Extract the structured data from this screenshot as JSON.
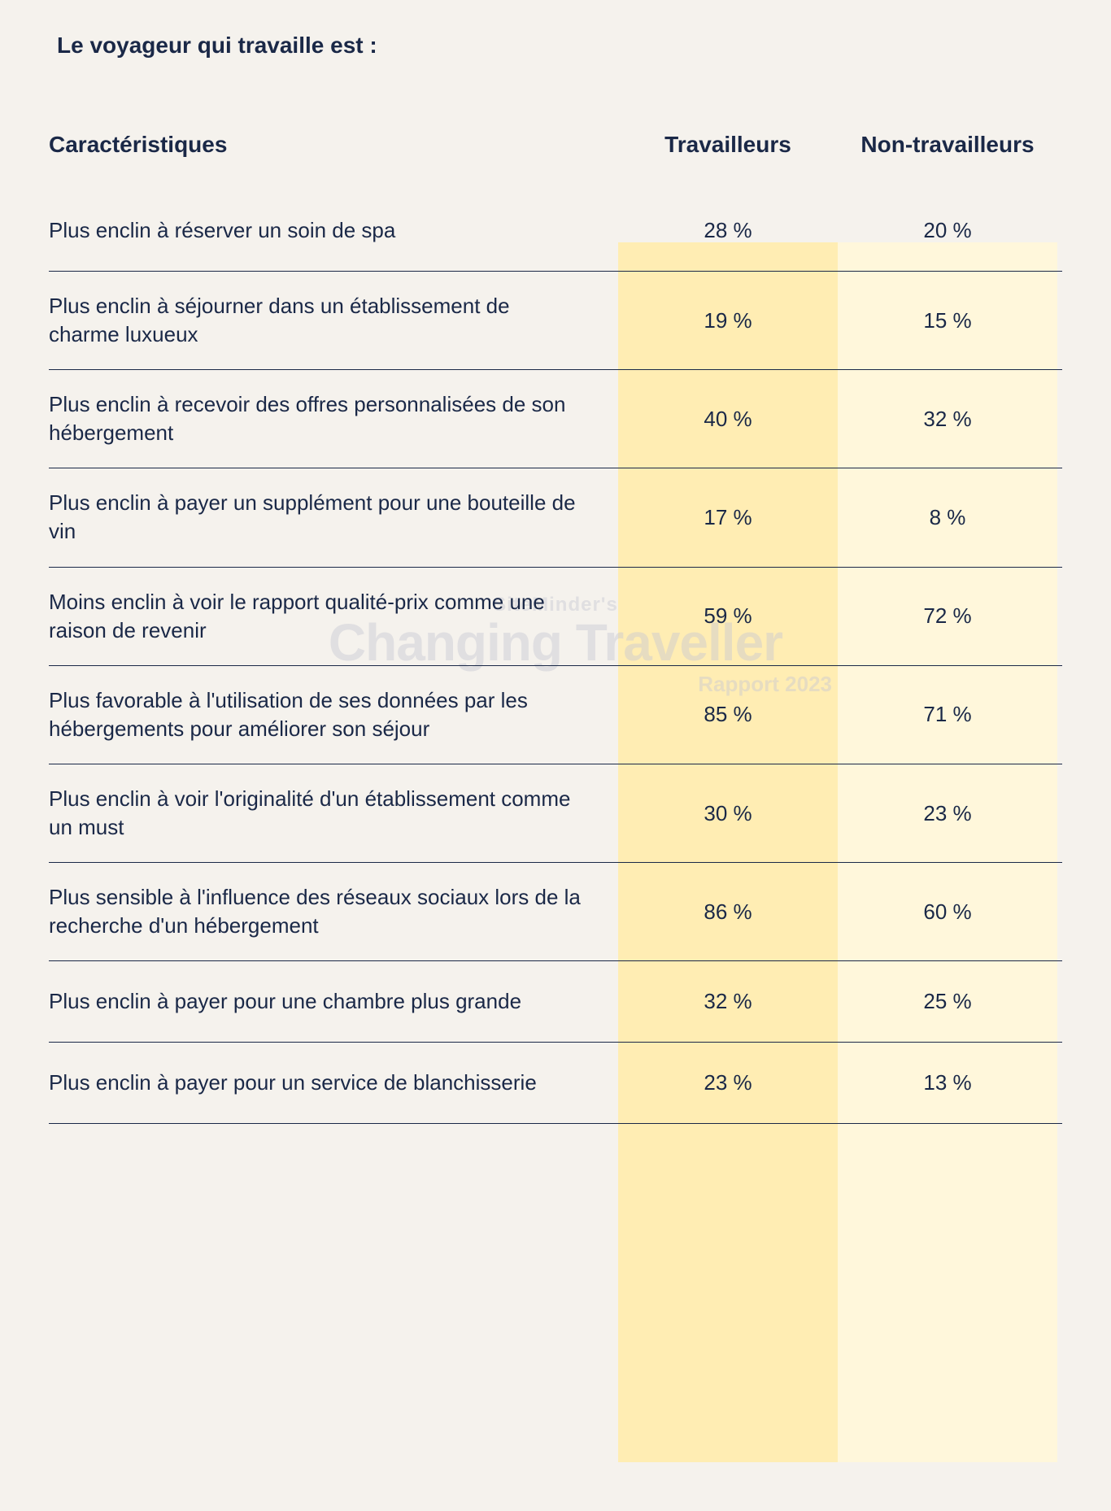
{
  "title": "Le voyageur qui travaille est :",
  "columns": {
    "characteristic": "Caractéristiques",
    "col1": "Travailleurs",
    "col2": "Non-travailleurs"
  },
  "rows": [
    {
      "label": "Plus enclin à réserver un soin de spa",
      "v1": "28 %",
      "v2": "20 %"
    },
    {
      "label": "Plus enclin à séjourner dans un établissement de charme luxueux",
      "v1": "19 %",
      "v2": "15 %"
    },
    {
      "label": "Plus enclin à recevoir des offres personnalisées de son hébergement",
      "v1": "40 %",
      "v2": "32 %"
    },
    {
      "label": "Plus enclin à payer un supplément pour une bouteille de vin",
      "v1": "17 %",
      "v2": "8 %"
    },
    {
      "label": "Moins enclin à voir le rapport qualité-prix comme une raison de revenir",
      "v1": "59 %",
      "v2": "72 %"
    },
    {
      "label": "Plus favorable à l'utilisation de ses données par les hébergements pour améliorer son séjour",
      "v1": "85 %",
      "v2": "71 %"
    },
    {
      "label": "Plus enclin à voir l'originalité d'un établissement comme un must",
      "v1": "30 %",
      "v2": "23 %"
    },
    {
      "label": "Plus sensible à l'influence des réseaux sociaux lors de la recherche d'un hébergement",
      "v1": "86 %",
      "v2": "60 %"
    },
    {
      "label": "Plus enclin à payer pour une chambre plus grande",
      "v1": "32 %",
      "v2": "25 %"
    },
    {
      "label": "Plus enclin à payer pour un service de blanchisserie",
      "v1": "23 %",
      "v2": "13 %"
    }
  ],
  "watermark": {
    "line1": "SiteMinder's",
    "line2": "Changing Traveller",
    "line3": "Rapport 2023"
  },
  "colors": {
    "background": "#f5f2ed",
    "text": "#1a2847",
    "highlight1": "#ffedb3",
    "highlight2": "#fff7db",
    "watermark": "rgba(200,200,210,0.45)"
  },
  "typography": {
    "title_fontsize": 28,
    "header_fontsize": 28,
    "body_fontsize": 26
  }
}
